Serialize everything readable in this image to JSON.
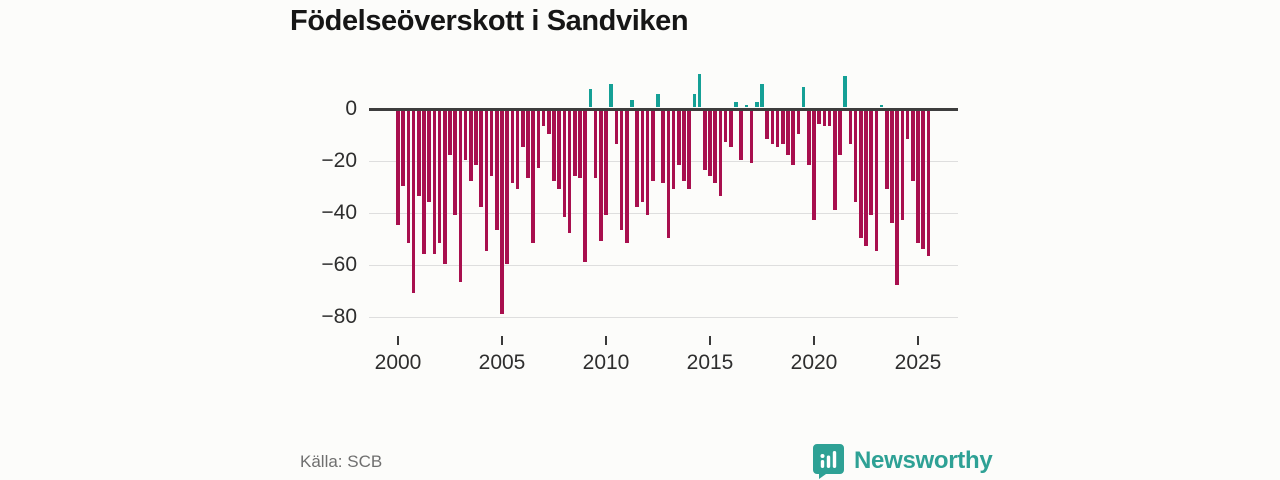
{
  "title": "Födelseöverskott i Sandviken",
  "source_label": "Källa: SCB",
  "brand": {
    "name": "Newsworthy",
    "color": "#2ea195"
  },
  "colors": {
    "negative_bar": "#a80f4e",
    "positive_bar": "#15a096",
    "grid": "#dedede",
    "axis": "#3d3d3d"
  },
  "chart_data": {
    "type": "bar",
    "title": "Födelseöverskott i Sandviken",
    "xlabel": "",
    "ylabel": "",
    "frequency": "quarterly",
    "x_start": "2000-Q1",
    "x_end": "2025-Q3",
    "x_tick_years": [
      2000,
      2005,
      2010,
      2015,
      2020,
      2025
    ],
    "y_ticks": [
      0,
      -20,
      -40,
      -60,
      -80
    ],
    "y_tick_labels": [
      "0",
      "−20",
      "−40",
      "−60",
      "−80"
    ],
    "ylim": [
      -85,
      16
    ],
    "grid": true,
    "legend": false,
    "series": [
      {
        "name": "Födelseöverskott",
        "values": [
          -44,
          -29,
          -51,
          -70,
          -33,
          -55,
          -35,
          -55,
          -51,
          -59,
          -17,
          -40,
          -66,
          -19,
          -27,
          -21,
          -37,
          -54,
          -25,
          -46,
          -78,
          -59,
          -28,
          -30,
          -14,
          -26,
          -51,
          -22,
          -6,
          -9,
          -27,
          -30,
          -41,
          -47,
          -25,
          -26,
          -58,
          7,
          -26,
          -50,
          -40,
          9,
          -13,
          -46,
          -51,
          3,
          -37,
          -35,
          -40,
          -27,
          5,
          -28,
          -49,
          -30,
          -21,
          -27,
          -30,
          5,
          13,
          -23,
          -25,
          -28,
          -33,
          -12,
          -14,
          2,
          -19,
          1,
          -20,
          2,
          9,
          -11,
          -13,
          -14,
          -13,
          -17,
          -21,
          -9,
          8,
          -21,
          -42,
          -5,
          -6,
          -6,
          -38,
          -17,
          12,
          -13,
          -35,
          -49,
          -52,
          -40,
          -54,
          1,
          -30,
          -43,
          -67,
          -42,
          -11,
          -27,
          -51,
          -53,
          -56
        ]
      }
    ]
  }
}
